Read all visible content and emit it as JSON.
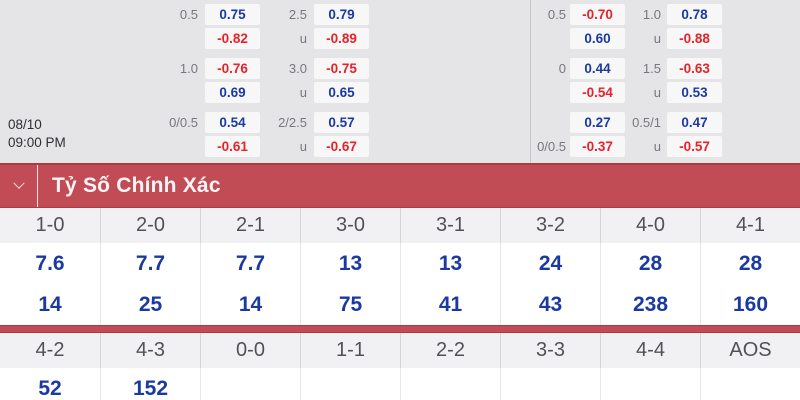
{
  "match_info": {
    "date": "08/10",
    "time": "09:00 PM"
  },
  "header_bar": {
    "title": "Tỷ Số Chính Xác",
    "collapse_icon": "chevron-down"
  },
  "odds": {
    "left": {
      "g1": {
        "r1": {
          "l1": "0.5",
          "v1": "0.75",
          "t1": "blue",
          "l2": "2.5",
          "v2": "0.79",
          "t2": "blue"
        },
        "r2": {
          "l1": "",
          "v1": "-0.82",
          "t1": "red",
          "l2": "u",
          "v2": "-0.89",
          "t2": "red"
        }
      },
      "g2": {
        "r1": {
          "l1": "1.0",
          "v1": "-0.76",
          "t1": "red",
          "l2": "3.0",
          "v2": "-0.75",
          "t2": "red"
        },
        "r2": {
          "l1": "",
          "v1": "0.69",
          "t1": "blue",
          "l2": "u",
          "v2": "0.65",
          "t2": "blue"
        }
      },
      "g3": {
        "r1": {
          "l1": "0/0.5",
          "v1": "0.54",
          "t1": "blue",
          "l2": "2/2.5",
          "v2": "0.57",
          "t2": "blue"
        },
        "r2": {
          "l1": "",
          "v1": "-0.61",
          "t1": "red",
          "l2": "u",
          "v2": "-0.67",
          "t2": "red"
        }
      }
    },
    "right": {
      "g1": {
        "r1": {
          "l1": "0.5",
          "v1": "-0.70",
          "t1": "red",
          "l2": "1.0",
          "v2": "0.78",
          "t2": "blue"
        },
        "r2": {
          "l1": "",
          "v1": "0.60",
          "t1": "blue",
          "l2": "u",
          "v2": "-0.88",
          "t2": "red"
        }
      },
      "g2": {
        "r1": {
          "l1": "0",
          "v1": "0.44",
          "t1": "blue",
          "l2": "1.5",
          "v2": "-0.63",
          "t2": "red"
        },
        "r2": {
          "l1": "",
          "v1": "-0.54",
          "t1": "red",
          "l2": "u",
          "v2": "0.53",
          "t2": "blue"
        }
      },
      "g3": {
        "r1": {
          "l1": "",
          "v1": "0.27",
          "t1": "blue",
          "l2": "0.5/1",
          "v2": "0.47",
          "t2": "blue"
        },
        "r2": {
          "l1": "0/0.5",
          "v1": "-0.37",
          "t1": "red",
          "l2": "u",
          "v2": "-0.57",
          "t2": "red"
        }
      }
    }
  },
  "correct_score": {
    "group1": {
      "headers": [
        "1-0",
        "2-0",
        "2-1",
        "3-0",
        "3-1",
        "3-2",
        "4-0",
        "4-1"
      ],
      "odds_row_1": [
        "7.6",
        "7.7",
        "7.7",
        "13",
        "13",
        "24",
        "28",
        "28"
      ],
      "odds_row_2": [
        "14",
        "25",
        "14",
        "75",
        "41",
        "43",
        "238",
        "160"
      ]
    },
    "group2": {
      "headers": [
        "4-2",
        "4-3",
        "0-0",
        "1-1",
        "2-2",
        "3-3",
        "4-4",
        "AOS"
      ],
      "odds_row_1": [
        "52",
        "152",
        "",
        "",
        "",
        "",
        "",
        ""
      ]
    }
  },
  "colors": {
    "accent_red": "#c24c55",
    "accent_red_dark": "#a83c45",
    "odds_blue": "#1b3aa1",
    "odds_red": "#e52329"
  }
}
